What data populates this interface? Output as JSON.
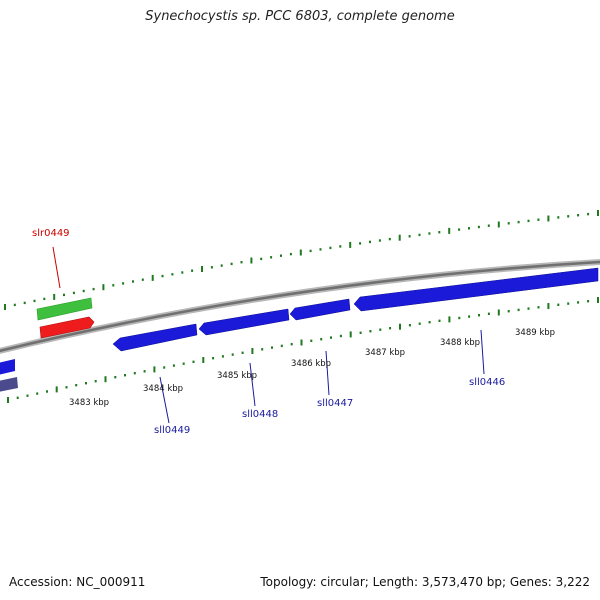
{
  "title": "Synechocystis sp. PCC 6803, complete genome",
  "footer": {
    "accession": "Accession: NC_000911",
    "summary": "Topology: circular; Length: 3,573,470 bp; Genes: 3,222"
  },
  "colors": {
    "forward_gene": "#3ec03e",
    "forward_gene_selected": "#ee1c1c",
    "reverse_gene": "#1a1ad8",
    "reverse_gene_other": "#4a4a8c",
    "backbone": "#808080",
    "tick": "#1f7a1f",
    "label_forward": "#cc0000",
    "label_reverse": "#1a1aa0"
  },
  "kbp_labels": [
    "3483 kbp",
    "3484 kbp",
    "3485 kbp",
    "3486 kbp",
    "3487 kbp",
    "3488 kbp",
    "3489 kbp"
  ],
  "genes": {
    "forward": [
      {
        "name": "slr0449"
      }
    ],
    "reverse": [
      {
        "name": "sll0449"
      },
      {
        "name": "sll0448"
      },
      {
        "name": "sll0447"
      },
      {
        "name": "sll0446"
      }
    ]
  }
}
